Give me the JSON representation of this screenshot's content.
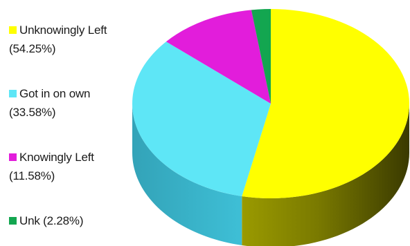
{
  "chart_data": {
    "type": "pie",
    "style": "3d",
    "title": "",
    "legend_position": "left",
    "slices": [
      {
        "label": "Unknowingly Left",
        "value": 54.25,
        "value_label": "(54.25%)",
        "color": "#ffff00"
      },
      {
        "label": "Got in on own",
        "value": 33.58,
        "value_label": "(33.58%)",
        "color": "#5ee6f6"
      },
      {
        "label": "Knowingly Left",
        "value": 11.58,
        "value_label": "(11.58%)",
        "color": "#e21ddb"
      },
      {
        "label": "Unk",
        "value": 2.28,
        "value_label": "(2.28%)",
        "color": "#13a650"
      }
    ]
  }
}
